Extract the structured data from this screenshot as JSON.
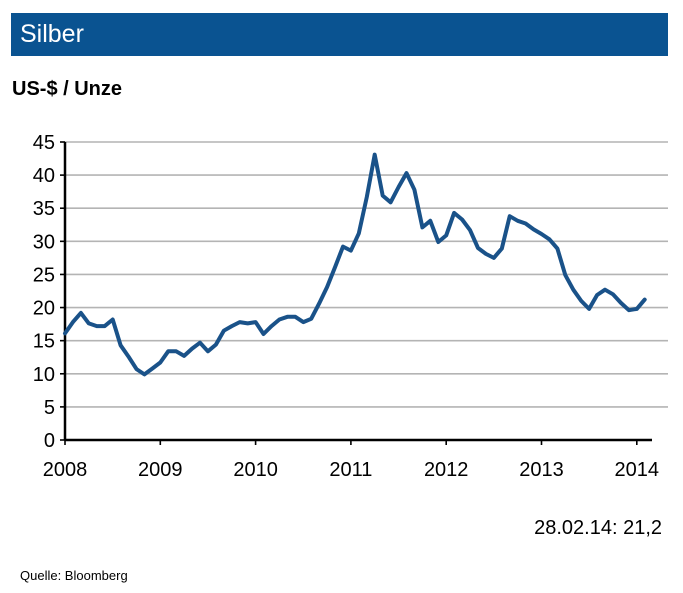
{
  "header": {
    "title": "Silber",
    "accent_color": "#0a5391"
  },
  "chart_data": {
    "type": "line",
    "title": "Silber",
    "ylabel": "US-$ / Unze",
    "xlabel": "",
    "ylim": [
      0,
      45
    ],
    "yticks": [
      0,
      5,
      10,
      15,
      20,
      25,
      30,
      35,
      40,
      45
    ],
    "xticks": [
      "2008",
      "2009",
      "2010",
      "2011",
      "2012",
      "2013",
      "2014"
    ],
    "xlim": [
      "2008-01",
      "2014-02"
    ],
    "grid": "horizontal",
    "line_color": "#1a5289",
    "series": [
      {
        "x": [
          "2008-01",
          "2008-02",
          "2008-03",
          "2008-04",
          "2008-05",
          "2008-06",
          "2008-07",
          "2008-08",
          "2008-09",
          "2008-10",
          "2008-11",
          "2008-12",
          "2009-01",
          "2009-02",
          "2009-03",
          "2009-04",
          "2009-05",
          "2009-06",
          "2009-07",
          "2009-08",
          "2009-09",
          "2009-10",
          "2009-11",
          "2009-12",
          "2010-01",
          "2010-02",
          "2010-03",
          "2010-04",
          "2010-05",
          "2010-06",
          "2010-07",
          "2010-08",
          "2010-09",
          "2010-10",
          "2010-11",
          "2010-12",
          "2011-01",
          "2011-02",
          "2011-03",
          "2011-04",
          "2011-05",
          "2011-06",
          "2011-07",
          "2011-08",
          "2011-09",
          "2011-10",
          "2011-11",
          "2011-12",
          "2012-01",
          "2012-02",
          "2012-03",
          "2012-04",
          "2012-05",
          "2012-06",
          "2012-07",
          "2012-08",
          "2012-09",
          "2012-10",
          "2012-11",
          "2012-12",
          "2013-01",
          "2013-02",
          "2013-03",
          "2013-04",
          "2013-05",
          "2013-06",
          "2013-07",
          "2013-08",
          "2013-09",
          "2013-10",
          "2013-11",
          "2013-12",
          "2014-01",
          "2014-02"
        ],
        "values": [
          16.1,
          17.8,
          19.2,
          17.6,
          17.2,
          17.2,
          18.2,
          14.3,
          12.6,
          10.7,
          9.9,
          10.8,
          11.7,
          13.4,
          13.4,
          12.7,
          13.8,
          14.7,
          13.4,
          14.4,
          16.5,
          17.2,
          17.8,
          17.6,
          17.8,
          16.0,
          17.2,
          18.2,
          18.6,
          18.6,
          17.8,
          18.3,
          20.6,
          23.1,
          26.1,
          29.2,
          28.6,
          31.2,
          36.7,
          43.1,
          36.9,
          35.9,
          38.2,
          40.3,
          37.8,
          32.1,
          33.1,
          29.9,
          30.9,
          34.3,
          33.3,
          31.7,
          29.0,
          28.1,
          27.5,
          28.9,
          33.8,
          33.1,
          32.7,
          31.8,
          31.1,
          30.3,
          28.9,
          24.9,
          22.7,
          21.0,
          19.8,
          21.9,
          22.7,
          22.0,
          20.7,
          19.6,
          19.8,
          21.2
        ]
      }
    ],
    "annotation": "28.02.14: 21,2"
  },
  "footer": {
    "source": "Quelle:  Bloomberg"
  }
}
